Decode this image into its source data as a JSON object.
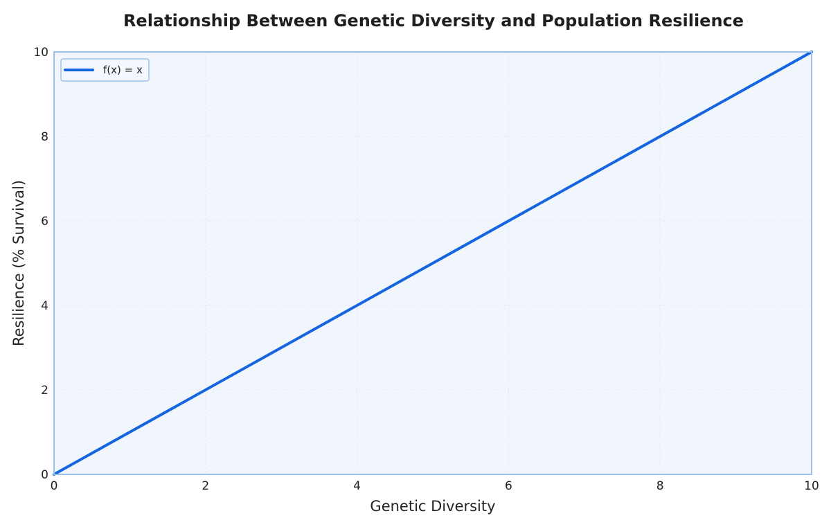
{
  "chart_data": {
    "type": "line",
    "title": "Relationship Between Genetic Diversity and Population Resilience",
    "xlabel": "Genetic Diversity",
    "ylabel": "Resilience (% Survival)",
    "xlim": [
      0,
      10
    ],
    "ylim": [
      0,
      10
    ],
    "xticks": [
      "0",
      "2",
      "4",
      "6",
      "8",
      "10"
    ],
    "yticks": [
      "0",
      "2",
      "4",
      "6",
      "8",
      "10"
    ],
    "grid": true,
    "legend_position": "top-left",
    "series": [
      {
        "name": "f(x) = x",
        "color": "#1565e0",
        "x": [
          0,
          10
        ],
        "y": [
          0,
          10
        ]
      }
    ]
  },
  "colors": {
    "plot_background": "#f1f6fd",
    "plot_border": "#9ec0ee",
    "grid": "#dde6f2"
  }
}
